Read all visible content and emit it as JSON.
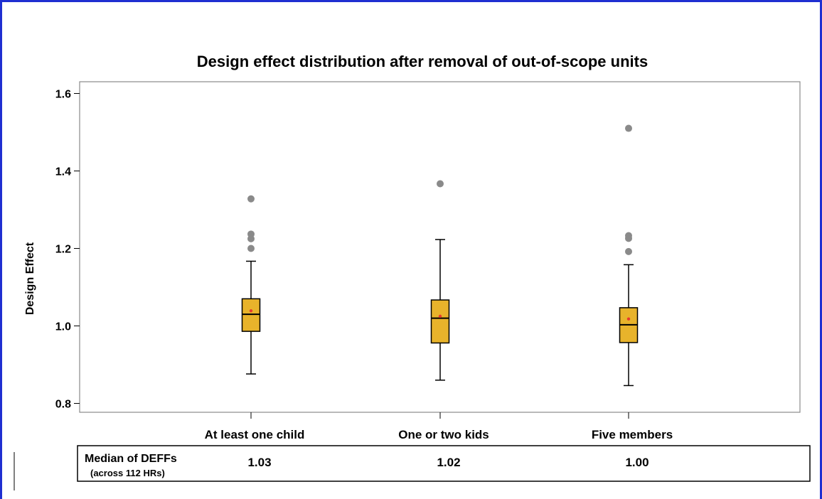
{
  "chart_data": {
    "type": "box",
    "title": "Design effect distribution after removal of out-of-scope units",
    "xlabel": "",
    "ylabel": "Design Effect",
    "ylim": [
      0.78,
      1.64
    ],
    "yticks": [
      0.8,
      1.0,
      1.2,
      1.4,
      1.6
    ],
    "ytick_labels": [
      "0.8",
      "1.0",
      "1.2",
      "1.4",
      "1.6"
    ],
    "grid": false,
    "categories": [
      "At least one child",
      "One or two kids",
      "Five members"
    ],
    "series": [
      {
        "min": 0.876,
        "q1": 0.986,
        "median": 1.03,
        "q3": 1.07,
        "max": 1.167,
        "mean": 1.039,
        "outliers": [
          1.2,
          1.225,
          1.237,
          1.328
        ]
      },
      {
        "min": 0.86,
        "q1": 0.956,
        "median": 1.02,
        "q3": 1.067,
        "max": 1.223,
        "mean": 1.025,
        "outliers": [
          1.367
        ]
      },
      {
        "min": 0.846,
        "q1": 0.957,
        "median": 1.003,
        "q3": 1.047,
        "max": 1.158,
        "mean": 1.018,
        "outliers": [
          1.192,
          1.226,
          1.233,
          1.51
        ]
      }
    ],
    "box_color": "#e8b32b",
    "mean_marker_color": "#e83b2f",
    "outlier_color": "#8a8a8a"
  },
  "summary_table": {
    "title": "Median of DEFFs",
    "subtitle": "(across 112 HRs)",
    "values": [
      "1.03",
      "1.02",
      "1.00"
    ]
  },
  "colors": {
    "frame": "#1f2fd1",
    "box": "#e8b32b",
    "mean_marker": "#e83b2f",
    "outlier": "#8a8a8a"
  }
}
